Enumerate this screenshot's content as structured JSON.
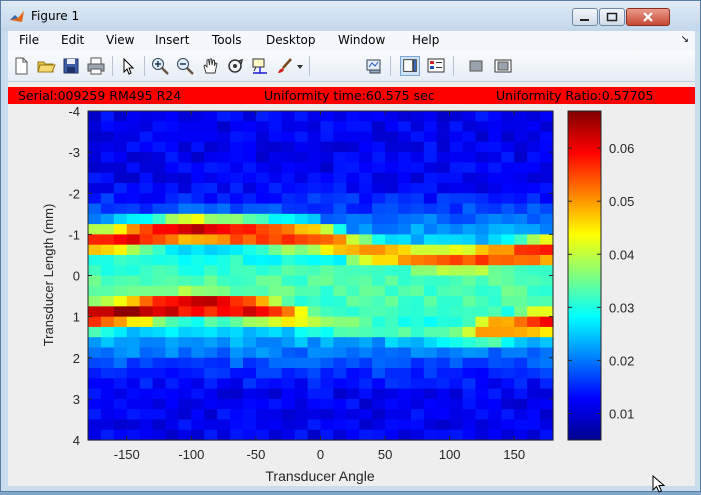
{
  "window": {
    "title": "Figure 1"
  },
  "menu": [
    "File",
    "Edit",
    "View",
    "Insert",
    "Tools",
    "Desktop",
    "Window",
    "Help"
  ],
  "menu_dock_icon": "dock-arrow-icon",
  "toolbar": {
    "buttons": [
      {
        "name": "new-figure-icon"
      },
      {
        "name": "open-file-icon"
      },
      {
        "name": "save-icon"
      },
      {
        "name": "print-icon"
      },
      {
        "name": "pointer-icon"
      },
      {
        "name": "zoom-in-icon"
      },
      {
        "name": "zoom-out-icon"
      },
      {
        "name": "pan-icon"
      },
      {
        "name": "rotate-3d-icon"
      },
      {
        "name": "data-cursor-icon"
      },
      {
        "name": "brush-icon"
      },
      {
        "name": "brush-dropdown-icon"
      },
      {
        "name": "link-plot-icon"
      },
      {
        "name": "insert-colorbar-icon"
      },
      {
        "name": "insert-legend-icon"
      },
      {
        "name": "hide-plot-tools-icon"
      },
      {
        "name": "show-plot-tools-icon"
      }
    ]
  },
  "banner": {
    "serial": "Serial:009259 RM495 R24",
    "uniformity_time": "Uniformity time:60.575 sec",
    "uniformity_ratio": "Uniformity Ratio:0.57705"
  },
  "colors": {
    "banner": "#ff0000",
    "window_frame": "#c9dcee"
  },
  "chart_data": {
    "type": "heatmap",
    "colormap": "jet",
    "xlabel": "Transducer Angle",
    "ylabel": "Transducer Length (mm)",
    "xlim": [
      -180,
      180
    ],
    "ylim": [
      -4,
      4
    ],
    "y_reversed": true,
    "xticks": [
      -150,
      -100,
      -50,
      0,
      50,
      100,
      150
    ],
    "xtick_labels": [
      "-150",
      "-100",
      "-50",
      "0",
      "50",
      "100",
      "150"
    ],
    "yticks": [
      -4,
      -3,
      -2,
      -1,
      0,
      1,
      2,
      3,
      4
    ],
    "ytick_labels": [
      "-4",
      "-3",
      "-2",
      "-1",
      "0",
      "1",
      "2",
      "3",
      "4"
    ],
    "colorbar": {
      "clim": [
        0.005,
        0.067
      ],
      "ticks": [
        0.01,
        0.02,
        0.03,
        0.04,
        0.05,
        0.06
      ],
      "tick_labels": [
        "0.01",
        "0.02",
        "0.03",
        "0.04",
        "0.05",
        "0.06"
      ]
    },
    "bands": [
      {
        "desc": "upper ridge",
        "x": [
          -180,
          -100,
          -50,
          0,
          30,
          80,
          120,
          180
        ],
        "center": [
          -0.8,
          -1.1,
          -1.0,
          -0.9,
          -0.6,
          -0.4,
          -0.4,
          -0.6
        ],
        "peak": [
          0.058,
          0.062,
          0.06,
          0.056,
          0.05,
          0.052,
          0.056,
          0.06
        ]
      },
      {
        "desc": "lower ridge",
        "x": [
          -180,
          -100,
          -50,
          0,
          50,
          100,
          130,
          180
        ],
        "center": [
          1.0,
          0.7,
          0.8,
          1.1,
          1.3,
          1.4,
          1.3,
          1.1
        ],
        "peak": [
          0.064,
          0.066,
          0.062,
          0.04,
          0.034,
          0.032,
          0.052,
          0.06
        ]
      }
    ]
  }
}
